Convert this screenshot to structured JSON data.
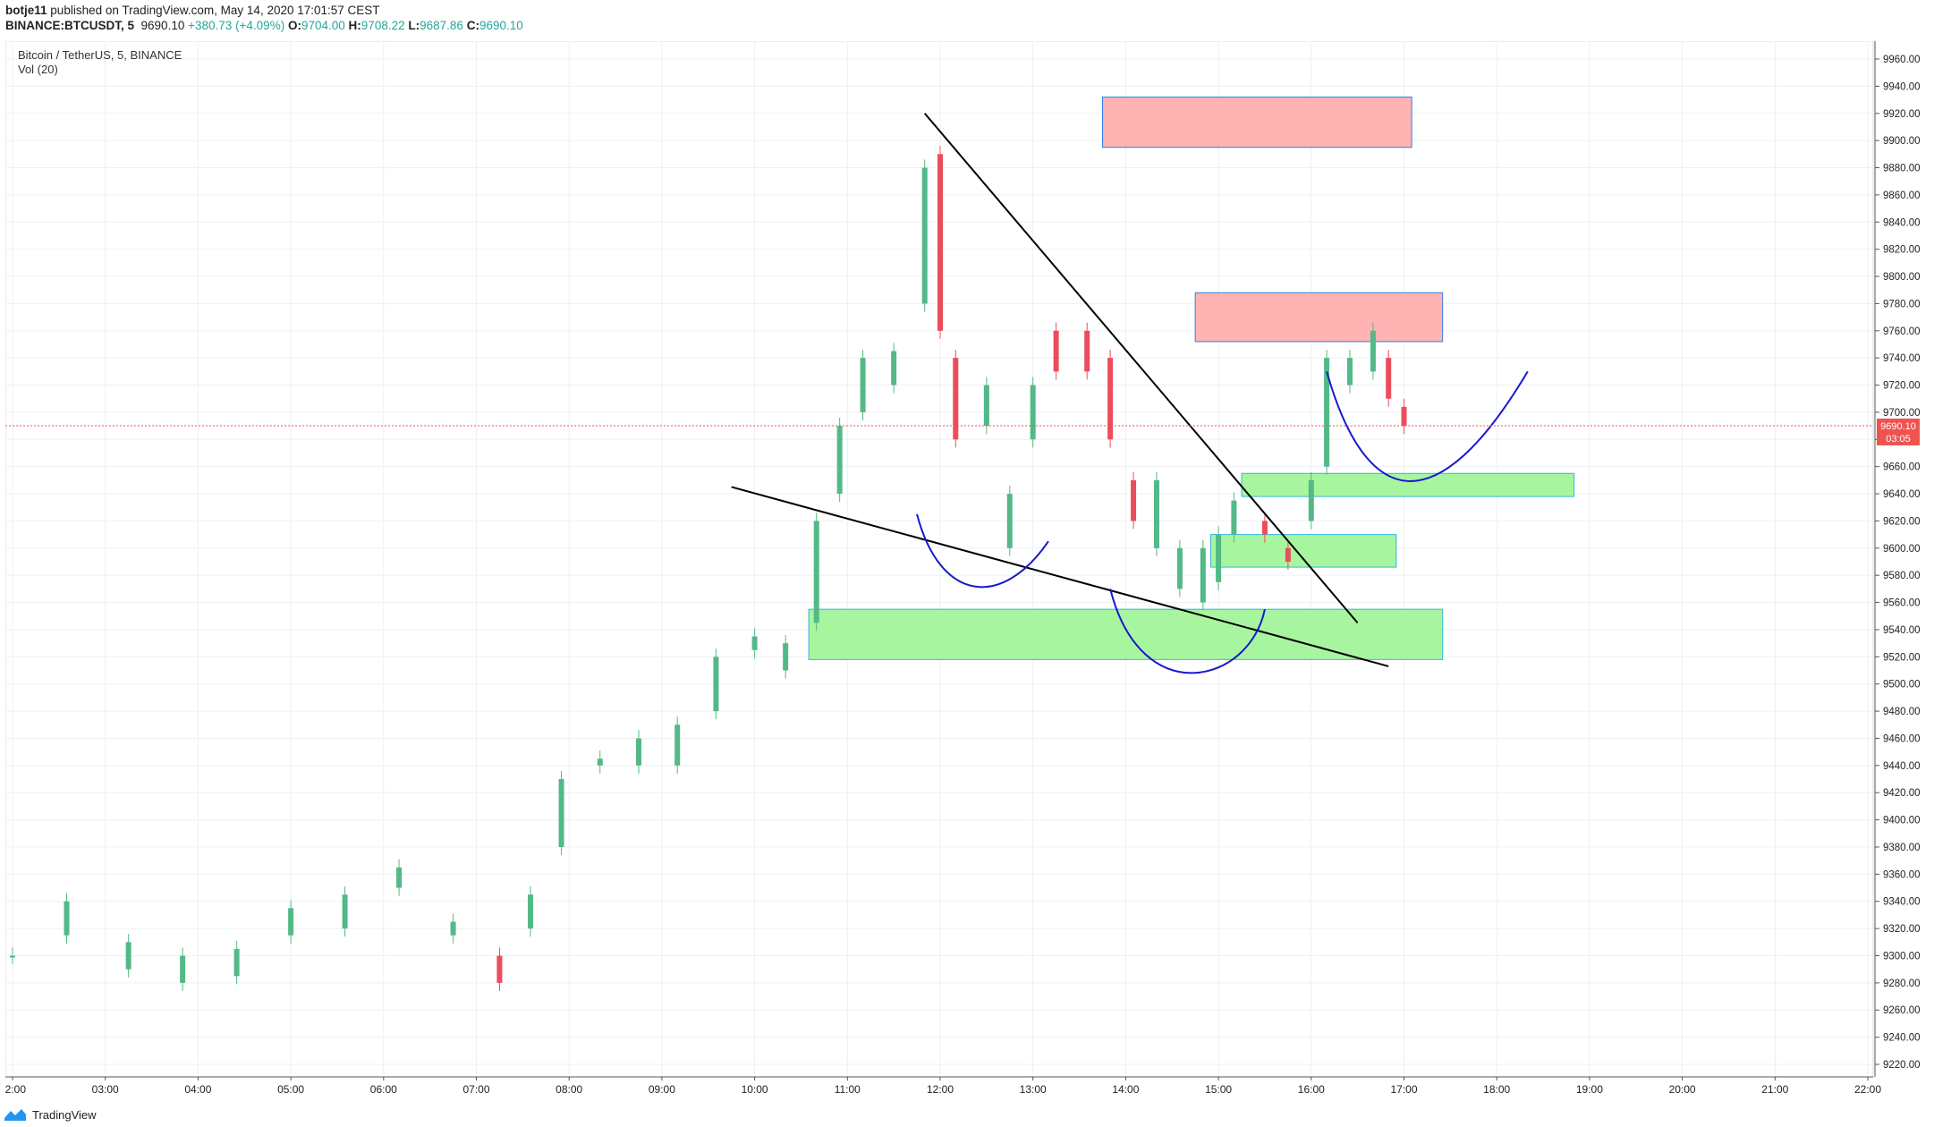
{
  "header": {
    "author": "botje11",
    "published": "published on TradingView.com, May 14, 2020 17:01:57 CEST",
    "symbol": "BINANCE:BTCUSDT, 5",
    "last": "9690.10",
    "change": "+380.73 (+4.09%)",
    "open_label": "O:",
    "open": "9704.00",
    "high_label": "H:",
    "high": "9708.22",
    "low_label": "L:",
    "low": "9687.86",
    "close_label": "C:",
    "close": "9690.10"
  },
  "legend": {
    "title": "Bitcoin / TetherUS, 5, BINANCE",
    "volume": "Vol (20)"
  },
  "price_tag": {
    "value": "9690.10",
    "countdown": "03:05"
  },
  "footer": {
    "brand": "TradingView"
  },
  "colors": {
    "up": "#26a69a",
    "up_fill": "#53b987",
    "down": "#ef5350",
    "down_fill": "#eb4d5c",
    "grid": "#edf0f3",
    "axis_text": "#222222",
    "trendline": "#000000",
    "curve": "#1818cc",
    "zone_red": "#ffb3b3",
    "zone_green": "#a8f5a0",
    "zone_border": "#2e7df0"
  },
  "chart_data": {
    "type": "candlestick",
    "title": "Bitcoin / TetherUS, 5, BINANCE",
    "ylim": [
      9220,
      9960
    ],
    "y_ticks": [
      "9960.00",
      "9940.00",
      "9920.00",
      "9900.00",
      "9880.00",
      "9860.00",
      "9840.00",
      "9820.00",
      "9800.00",
      "9780.00",
      "9760.00",
      "9740.00",
      "9720.00",
      "9700.00",
      "9680.00",
      "9660.00",
      "9640.00",
      "9620.00",
      "9600.00",
      "9580.00",
      "9560.00",
      "9540.00",
      "9520.00",
      "9500.00",
      "9480.00",
      "9460.00",
      "9440.00",
      "9420.00",
      "9400.00",
      "9380.00",
      "9360.00",
      "9340.00",
      "9320.00",
      "9300.00",
      "9280.00",
      "9260.00",
      "9240.00",
      "9220.00"
    ],
    "x_ticks": [
      "02:00",
      "03:00",
      "04:00",
      "05:00",
      "06:00",
      "07:00",
      "08:00",
      "09:00",
      "10:00",
      "11:00",
      "12:00",
      "13:00",
      "14:00",
      "15:00",
      "16:00",
      "17:00",
      "18:00",
      "19:00",
      "20:00",
      "21:00",
      "22:00"
    ],
    "candle_series": [
      {
        "t": "02:00",
        "o": 9300,
        "c": 9300
      },
      {
        "t": "02:35",
        "o": 9315,
        "c": 9340
      },
      {
        "t": "03:15",
        "o": 9290,
        "c": 9310
      },
      {
        "t": "03:50",
        "o": 9280,
        "c": 9300
      },
      {
        "t": "04:25",
        "o": 9285,
        "c": 9305
      },
      {
        "t": "05:00",
        "o": 9315,
        "c": 9335
      },
      {
        "t": "05:35",
        "o": 9320,
        "c": 9345
      },
      {
        "t": "06:10",
        "o": 9350,
        "c": 9365
      },
      {
        "t": "06:45",
        "o": 9315,
        "c": 9325
      },
      {
        "t": "07:15",
        "o": 9300,
        "c": 9280
      },
      {
        "t": "07:35",
        "o": 9320,
        "c": 9345
      },
      {
        "t": "07:55",
        "o": 9380,
        "c": 9430
      },
      {
        "t": "08:20",
        "o": 9440,
        "c": 9445
      },
      {
        "t": "08:45",
        "o": 9440,
        "c": 9460
      },
      {
        "t": "09:10",
        "o": 9440,
        "c": 9470
      },
      {
        "t": "09:35",
        "o": 9480,
        "c": 9520
      },
      {
        "t": "10:00",
        "o": 9525,
        "c": 9535
      },
      {
        "t": "10:20",
        "o": 9510,
        "c": 9530
      },
      {
        "t": "10:40",
        "o": 9545,
        "c": 9620
      },
      {
        "t": "10:55",
        "o": 9640,
        "c": 9690
      },
      {
        "t": "11:10",
        "o": 9700,
        "c": 9740
      },
      {
        "t": "11:30",
        "o": 9720,
        "c": 9745
      },
      {
        "t": "11:50",
        "o": 9780,
        "c": 9880
      },
      {
        "t": "12:00",
        "o": 9890,
        "c": 9760
      },
      {
        "t": "12:10",
        "o": 9740,
        "c": 9680
      },
      {
        "t": "12:30",
        "o": 9690,
        "c": 9720
      },
      {
        "t": "12:45",
        "o": 9600,
        "c": 9640
      },
      {
        "t": "13:00",
        "o": 9680,
        "c": 9720
      },
      {
        "t": "13:15",
        "o": 9760,
        "c": 9730
      },
      {
        "t": "13:35",
        "o": 9760,
        "c": 9730
      },
      {
        "t": "13:50",
        "o": 9740,
        "c": 9680
      },
      {
        "t": "14:05",
        "o": 9650,
        "c": 9620
      },
      {
        "t": "14:20",
        "o": 9600,
        "c": 9650
      },
      {
        "t": "14:35",
        "o": 9570,
        "c": 9600
      },
      {
        "t": "14:50",
        "o": 9560,
        "c": 9600
      },
      {
        "t": "15:00",
        "o": 9575,
        "c": 9610
      },
      {
        "t": "15:10",
        "o": 9610,
        "c": 9635
      },
      {
        "t": "15:30",
        "o": 9620,
        "c": 9610
      },
      {
        "t": "15:45",
        "o": 9600,
        "c": 9590
      },
      {
        "t": "16:00",
        "o": 9620,
        "c": 9650
      },
      {
        "t": "16:10",
        "o": 9660,
        "c": 9740
      },
      {
        "t": "16:25",
        "o": 9720,
        "c": 9740
      },
      {
        "t": "16:40",
        "o": 9730,
        "c": 9760
      },
      {
        "t": "16:50",
        "o": 9740,
        "c": 9710
      },
      {
        "t": "17:00",
        "o": 9704,
        "c": 9690.1
      }
    ],
    "volume_title": "Vol (20)",
    "annotations": {
      "trendlines": [
        {
          "from": [
            "11:50",
            9920
          ],
          "to": [
            "16:30",
            9545
          ]
        },
        {
          "from": [
            "09:45",
            9645
          ],
          "to": [
            "16:50",
            9513
          ]
        }
      ],
      "supply_zones": [
        {
          "from": "13:45",
          "to": "17:05",
          "top": 9932,
          "bottom": 9895
        },
        {
          "from": "14:45",
          "to": "17:25",
          "top": 9788,
          "bottom": 9752
        }
      ],
      "demand_zones": [
        {
          "from": "10:35",
          "to": "17:25",
          "top": 9555,
          "bottom": 9518
        },
        {
          "from": "14:55",
          "to": "16:55",
          "top": 9610,
          "bottom": 9586
        },
        {
          "from": "15:15",
          "to": "18:50",
          "top": 9655,
          "bottom": 9638
        }
      ]
    }
  }
}
